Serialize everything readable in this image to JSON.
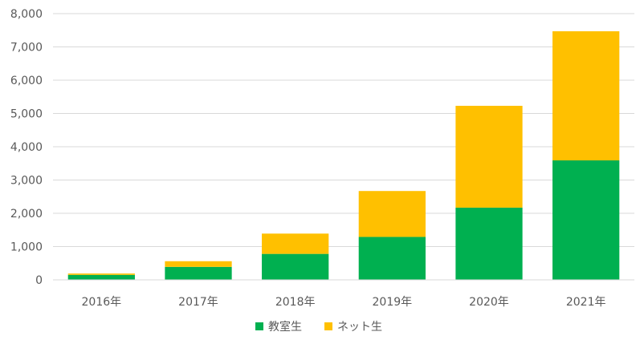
{
  "chart_data": {
    "type": "bar",
    "stacked": true,
    "categories": [
      "2016年",
      "2017年",
      "2018年",
      "2019年",
      "2020年",
      "2021年"
    ],
    "series": [
      {
        "name": "教室生",
        "color": "#00B050",
        "values": [
          150,
          390,
          780,
          1290,
          2170,
          3590
        ]
      },
      {
        "name": "ネット生",
        "color": "#FFC000",
        "values": [
          40,
          170,
          610,
          1380,
          3060,
          3880
        ]
      }
    ],
    "ylim": [
      0,
      8000
    ],
    "yticks": [
      "0",
      "1,000",
      "2,000",
      "3,000",
      "4,000",
      "5,000",
      "6,000",
      "7,000",
      "8,000"
    ],
    "grid": true,
    "legend_position": "bottom"
  }
}
